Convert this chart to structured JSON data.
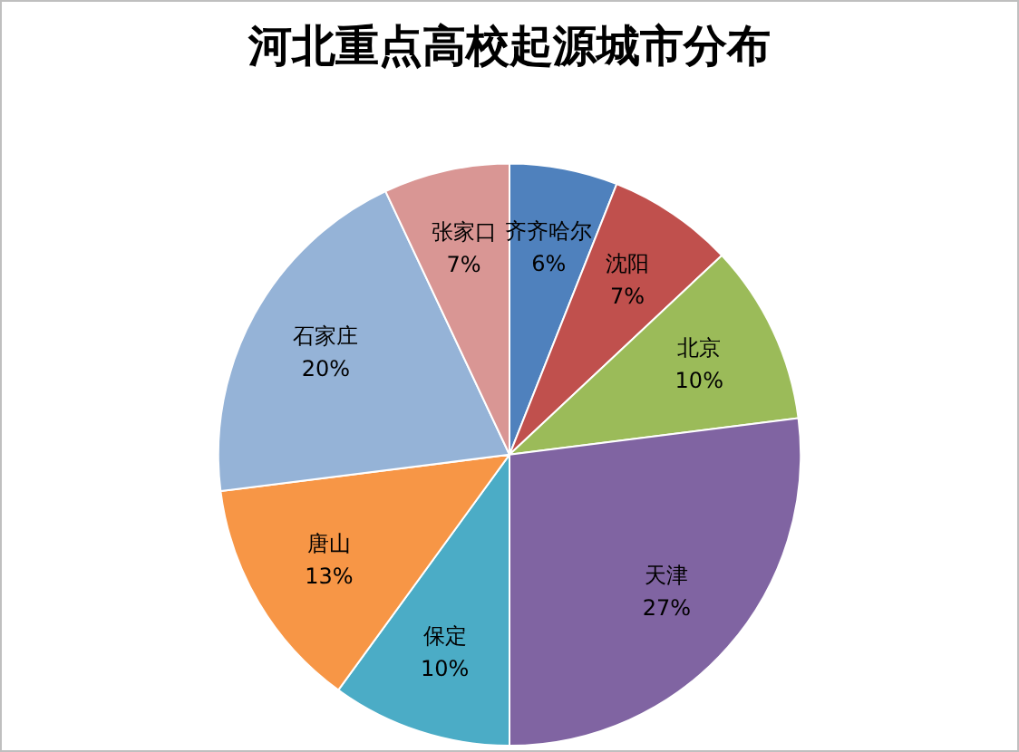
{
  "chart_data": {
    "type": "pie",
    "title": "河北重点高校起源城市分布",
    "categories": [
      "齐齐哈尔",
      "沈阳",
      "北京",
      "天津",
      "保定",
      "唐山",
      "石家庄",
      "张家口"
    ],
    "values": [
      6,
      7,
      10,
      27,
      10,
      13,
      20,
      7
    ],
    "value_labels": [
      "6%",
      "7%",
      "10%",
      "27%",
      "10%",
      "13%",
      "20%",
      "7%"
    ],
    "colors": [
      "#4f81bd",
      "#c0504d",
      "#9bbb59",
      "#8064a2",
      "#4bacc6",
      "#f79646",
      "#95b3d7",
      "#d99694"
    ],
    "legend": false
  }
}
